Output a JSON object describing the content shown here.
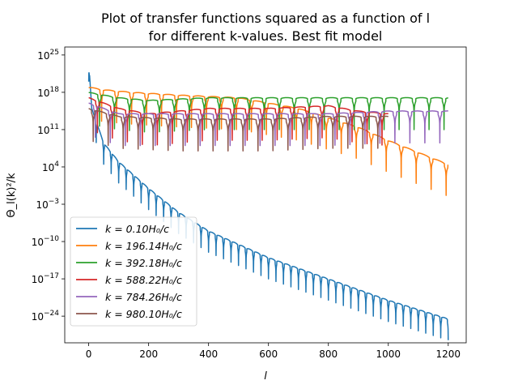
{
  "chart_data": {
    "type": "line",
    "title_line1": "Plot of transfer functions squared as a function of l",
    "title_line2": "for different k-values. Best fit model",
    "xlabel": "l",
    "ylabel": "Θ_l(k)²/k",
    "xlim": [
      -80,
      1260
    ],
    "ylim_log10": [
      -29,
      26.5
    ],
    "yscale": "log",
    "grid": false,
    "legend_position": "lower-left",
    "x_ticks": [
      0,
      200,
      400,
      600,
      800,
      1000,
      1200
    ],
    "y_ticks": [
      {
        "exp": 25,
        "label": "10^25"
      },
      {
        "exp": 18,
        "label": "10^18"
      },
      {
        "exp": 11,
        "label": "10^11"
      },
      {
        "exp": 4,
        "label": "10^4"
      },
      {
        "exp": -3,
        "label": "10^-3"
      },
      {
        "exp": -10,
        "label": "10^-10"
      },
      {
        "exp": -17,
        "label": "10^-17"
      },
      {
        "exp": -24,
        "label": "10^-24"
      }
    ],
    "series": [
      {
        "name": "k = 0.10H₀/c",
        "k": 0.1,
        "color": "#1f77b4",
        "envelope_log10": [
          [
            0,
            24
          ],
          [
            10,
            15
          ],
          [
            50,
            8.5
          ],
          [
            100,
            5
          ],
          [
            200,
            0
          ],
          [
            300,
            -4.5
          ],
          [
            400,
            -8
          ],
          [
            600,
            -13
          ],
          [
            800,
            -17
          ],
          [
            1000,
            -21
          ],
          [
            1200,
            -24.5
          ]
        ],
        "dip_spacing": 25,
        "dip_depth": 4
      },
      {
        "name": "k = 196.14H₀/c",
        "k": 196.14,
        "color": "#ff7f0e",
        "envelope_log10": [
          [
            0,
            19
          ],
          [
            50,
            18.5
          ],
          [
            150,
            18
          ],
          [
            300,
            17.5
          ],
          [
            500,
            17
          ],
          [
            700,
            15
          ],
          [
            900,
            11.5
          ],
          [
            1000,
            9
          ],
          [
            1200,
            4.5
          ]
        ],
        "dip_spacing": 50,
        "dip_depth": 6
      },
      {
        "name": "k = 392.18H₀/c",
        "k": 392.18,
        "color": "#2ca02c",
        "envelope_log10": [
          [
            0,
            18
          ],
          [
            100,
            17
          ],
          [
            200,
            16.5
          ],
          [
            400,
            17
          ],
          [
            600,
            17
          ],
          [
            800,
            17
          ],
          [
            1000,
            17
          ],
          [
            1200,
            17
          ]
        ],
        "dip_spacing": 50,
        "dip_depth": 6
      },
      {
        "name": "k = 588.22H₀/c",
        "k": 588.22,
        "color": "#d62728",
        "envelope_log10": [
          [
            0,
            17
          ],
          [
            100,
            15
          ],
          [
            200,
            14
          ],
          [
            400,
            15
          ],
          [
            600,
            15
          ],
          [
            800,
            15.5
          ],
          [
            900,
            14.5
          ],
          [
            1000,
            14
          ]
        ],
        "dip_spacing": 50,
        "dip_depth": 6
      },
      {
        "name": "k = 784.26H₀/c",
        "k": 784.26,
        "color": "#9467bd",
        "envelope_log10": [
          [
            0,
            16
          ],
          [
            100,
            14
          ],
          [
            300,
            14
          ],
          [
            600,
            14
          ],
          [
            800,
            14
          ],
          [
            1000,
            14.5
          ],
          [
            1200,
            14.5
          ]
        ],
        "dip_spacing": 50,
        "dip_depth": 6
      },
      {
        "name": "k = 980.10H₀/c",
        "k": 980.1,
        "color": "#8c564b",
        "envelope_log10": [
          [
            0,
            15
          ],
          [
            100,
            13.5
          ],
          [
            300,
            13
          ],
          [
            600,
            13
          ],
          [
            800,
            13.5
          ],
          [
            1000,
            13.5
          ]
        ],
        "dip_spacing": 50,
        "dip_depth": 6
      }
    ]
  }
}
